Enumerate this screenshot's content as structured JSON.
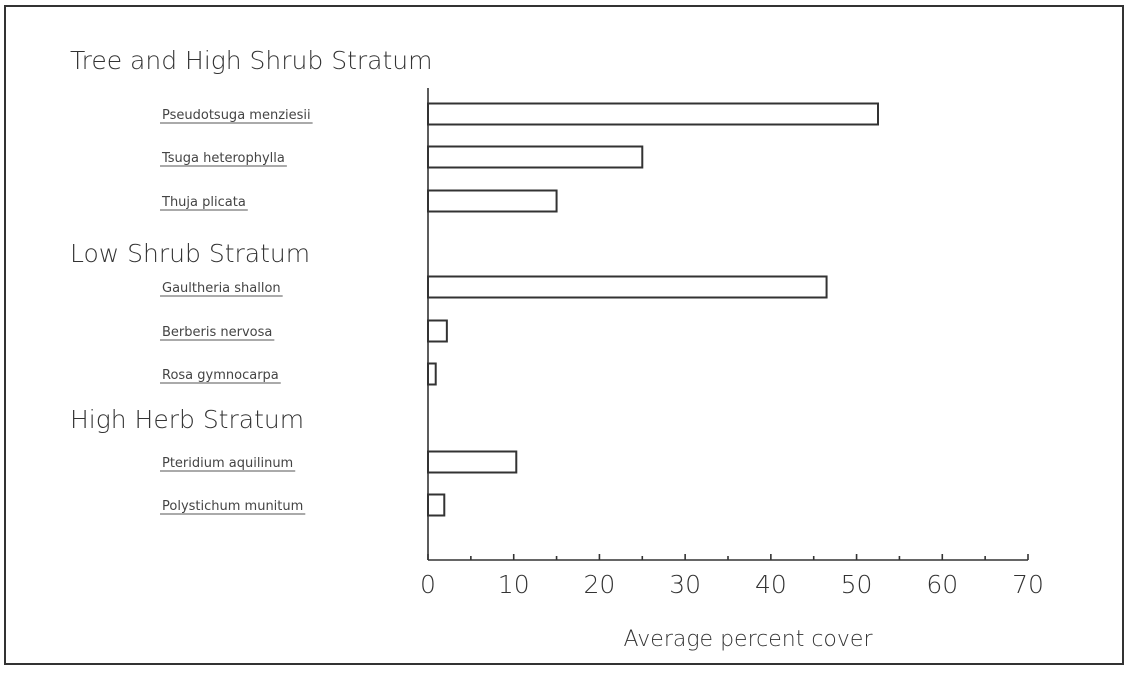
{
  "chart_data": {
    "type": "bar",
    "orientation": "horizontal",
    "xlabel": "Average percent cover",
    "xlim": [
      0,
      70
    ],
    "xticks": [
      0,
      10,
      20,
      30,
      40,
      50,
      60,
      70
    ],
    "grid": false,
    "groups": [
      {
        "label": "Tree and High Shrub Stratum",
        "categories": [
          "Pseudotsuga menziesii",
          "Tsuga heterophylla",
          "Thuja plicata"
        ],
        "values": [
          52.5,
          25,
          15
        ]
      },
      {
        "label": "Low Shrub Stratum",
        "categories": [
          "Gaultheria shallon",
          "Berberis nervosa",
          "Rosa gymnocarpa"
        ],
        "values": [
          46.5,
          2.2,
          0.9
        ]
      },
      {
        "label": "High Herb Stratum",
        "categories": [
          "Pteridium aquilinum",
          "Polystichum munitum"
        ],
        "values": [
          10.3,
          1.9
        ]
      }
    ]
  }
}
